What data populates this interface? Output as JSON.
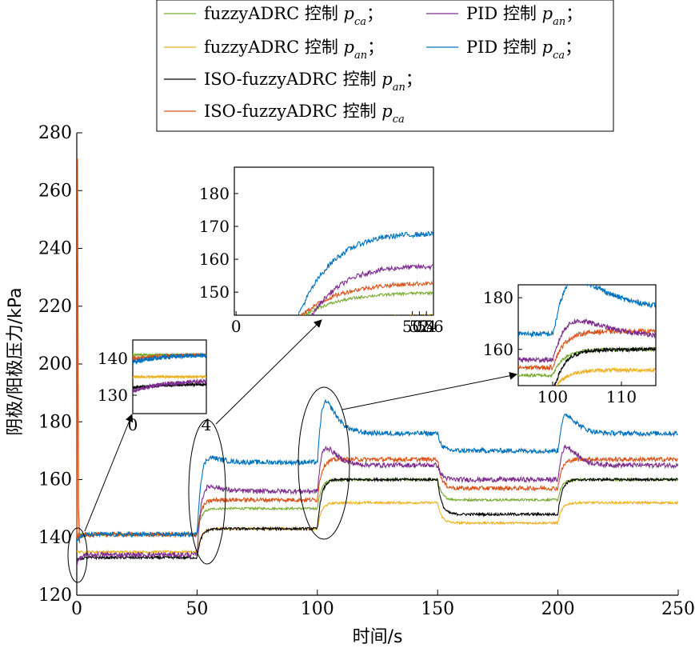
{
  "chart_data": {
    "type": "line",
    "xlabel": "时间/s",
    "ylabel": "阴极/阳极压力/kPa",
    "xlim": [
      0,
      250
    ],
    "ylim": [
      120,
      280
    ],
    "xticks": [
      0,
      50,
      100,
      150,
      200,
      250
    ],
    "yticks": [
      120,
      140,
      160,
      180,
      200,
      220,
      240,
      260,
      280
    ],
    "grid": false,
    "legend_position": "top-center",
    "legend": [
      {
        "name": "fuzzyADRC 控制 p",
        "sub": "ca",
        "suffix": "；",
        "color": "#77ac30"
      },
      {
        "name": "PID 控制 p",
        "sub": "an",
        "suffix": "；",
        "color": "#7e2f8e"
      },
      {
        "name": "fuzzyADRC 控制 p",
        "sub": "an",
        "suffix": "；",
        "color": "#edb120"
      },
      {
        "name": "PID 控制 p",
        "sub": "ca",
        "suffix": "；",
        "color": "#0072bd"
      },
      {
        "name": "ISO-fuzzyADRC 控制 p",
        "sub": "an",
        "suffix": "；",
        "color": "#000000"
      },
      {
        "name": "ISO-fuzzyADRC 控制 p",
        "sub": "ca",
        "suffix": "",
        "color": "#d95319"
      }
    ],
    "series": [
      {
        "name": "fuzzyADRC 控制 p_ca",
        "color": "#77ac30",
        "levels": [
          [
            0,
            141
          ],
          [
            50,
            141
          ],
          [
            100,
            150
          ],
          [
            150,
            160
          ],
          [
            200,
            153
          ],
          [
            250,
            160
          ]
        ],
        "peaks": []
      },
      {
        "name": "fuzzyADRC 控制 p_an",
        "color": "#edb120",
        "levels": [
          [
            0,
            135
          ],
          [
            50,
            135
          ],
          [
            100,
            143
          ],
          [
            150,
            152
          ],
          [
            200,
            145
          ],
          [
            250,
            152
          ]
        ],
        "peaks": []
      },
      {
        "name": "ISO-fuzzyADRC 控制 p_an",
        "color": "#000000",
        "levels": [
          [
            0,
            132
          ],
          [
            50,
            133
          ],
          [
            100,
            143
          ],
          [
            150,
            160
          ],
          [
            200,
            148
          ],
          [
            250,
            160
          ]
        ],
        "peaks": []
      },
      {
        "name": "ISO-fuzzyADRC 控制 p_ca",
        "color": "#d95319",
        "levels": [
          [
            0,
            140
          ],
          [
            50,
            141
          ],
          [
            100,
            153
          ],
          [
            150,
            167
          ],
          [
            200,
            157
          ],
          [
            250,
            167
          ]
        ],
        "peaks": []
      },
      {
        "name": "PID 控制 p_an",
        "color": "#7e2f8e",
        "levels": [
          [
            0,
            131
          ],
          [
            50,
            134
          ],
          [
            100,
            156
          ],
          [
            150,
            165
          ],
          [
            200,
            160
          ],
          [
            250,
            165
          ]
        ],
        "peaks": [
          [
            53,
            159
          ],
          [
            103,
            172
          ],
          [
            203,
            172
          ]
        ]
      },
      {
        "name": "PID 控制 p_ca",
        "color": "#0072bd",
        "levels": [
          [
            0,
            139
          ],
          [
            50,
            141
          ],
          [
            100,
            166
          ],
          [
            150,
            176
          ],
          [
            200,
            170
          ],
          [
            250,
            176
          ]
        ],
        "peaks": [
          [
            53,
            169
          ],
          [
            103,
            188
          ],
          [
            203,
            183
          ]
        ]
      }
    ],
    "initial_spike": {
      "x": 0.3,
      "y": 271
    },
    "insets": [
      {
        "xlim": [
          0,
          4
        ],
        "ylim": [
          125,
          145
        ],
        "xticks": [
          0,
          4
        ],
        "yticks": [
          130,
          140
        ],
        "target_x": [
          0,
          4
        ]
      },
      {
        "xlim": [
          -0.5,
          56
        ],
        "ylim": [
          143,
          188
        ],
        "xticks": [
          0,
          50,
          52,
          54,
          56
        ],
        "yticks": [
          150,
          160,
          170,
          180
        ],
        "target_x": [
          50,
          56
        ],
        "broken_axis": true
      },
      {
        "xlim": [
          95,
          115
        ],
        "ylim": [
          146,
          185
        ],
        "xticks": [
          100,
          110
        ],
        "yticks": [
          160,
          180
        ],
        "target_x": [
          95,
          115
        ]
      }
    ]
  }
}
